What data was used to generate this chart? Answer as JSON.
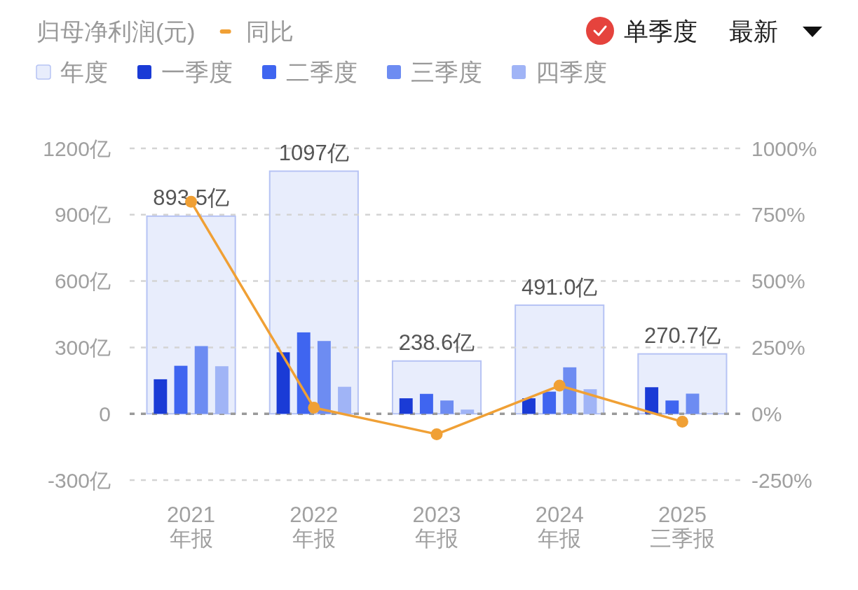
{
  "chart_data": {
    "type": "bar",
    "title": "归母净利润(元)",
    "categories": [
      "2021\n年报",
      "2022\n年报",
      "2023\n年报",
      "2024\n年报",
      "2025\n三季报"
    ],
    "series": [
      {
        "name": "年度",
        "color": "#e8edfc",
        "values": [
          893.5,
          1097,
          238.6,
          491.0,
          270.7
        ],
        "value_labels": [
          "893.5亿",
          "1097亿",
          "238.6亿",
          "491.0亿",
          "270.7亿"
        ]
      },
      {
        "name": "一季度",
        "color": "#1a3bd6",
        "values": [
          156,
          278,
          70,
          70,
          120
        ]
      },
      {
        "name": "二季度",
        "color": "#3f65f0",
        "values": [
          217,
          368,
          90,
          100,
          60
        ]
      },
      {
        "name": "三季度",
        "color": "#6d8cf2",
        "values": [
          306,
          329,
          60,
          210,
          91
        ]
      },
      {
        "name": "四季度",
        "color": "#a0b4f6",
        "values": [
          215,
          122,
          19,
          111,
          null
        ]
      },
      {
        "name": "同比",
        "type": "line",
        "axis": "y2",
        "color": "#f0a035",
        "marker": "circle",
        "values": [
          799,
          23,
          -77,
          106,
          -30
        ]
      }
    ],
    "ylim": [
      -300,
      1200
    ],
    "yticks": [
      {
        "value": -300,
        "label": "-300亿"
      },
      0,
      {
        "value": 300,
        "label": "300亿"
      },
      {
        "value": 600,
        "label": "600亿"
      },
      {
        "value": 900,
        "label": "900亿"
      },
      {
        "value": 1200,
        "label": "1200亿"
      }
    ],
    "y2lim": [
      -250,
      1000
    ],
    "y2ticks": [
      {
        "value": -250,
        "label": "-250%"
      },
      {
        "value": 0,
        "label": "0%"
      },
      {
        "value": 250,
        "label": "250%"
      },
      {
        "value": 500,
        "label": "500%"
      },
      {
        "value": 750,
        "label": "750%"
      },
      {
        "value": 1000,
        "label": "1000%"
      }
    ],
    "ref_lines": [
      {
        "axis": "y",
        "value": 0,
        "color": "#9a9a9a",
        "line_style": "dashed"
      }
    ],
    "grid": "y",
    "legend": "top",
    "annotations": [
      "单季度",
      "最新"
    ]
  }
}
